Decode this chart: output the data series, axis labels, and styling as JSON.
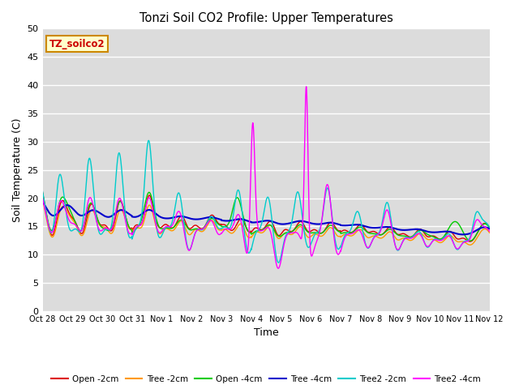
{
  "title": "Tonzi Soil CO2 Profile: Upper Temperatures",
  "xlabel": "Time",
  "ylabel": "Soil Temperature (C)",
  "ylim": [
    0,
    50
  ],
  "yticks": [
    0,
    5,
    10,
    15,
    20,
    25,
    30,
    35,
    40,
    45,
    50
  ],
  "xtick_labels": [
    "Oct 28",
    "Oct 29",
    "Oct 30",
    "Oct 31",
    "Nov 1",
    "Nov 2",
    "Nov 3",
    "Nov 4",
    "Nov 5",
    "Nov 6",
    "Nov 7",
    "Nov 8",
    "Nov 9",
    "Nov 10",
    "Nov 11",
    "Nov 12"
  ],
  "plot_bg_color": "#dcdcdc",
  "grid_color": "#f0f0f0",
  "label_box_text": "TZ_soilco2",
  "label_box_facecolor": "#ffffcc",
  "label_box_edgecolor": "#cc8800",
  "label_box_textcolor": "#cc0000",
  "series": {
    "Open -2cm": {
      "color": "#dd0000",
      "lw": 1.0
    },
    "Tree -2cm": {
      "color": "#ff9900",
      "lw": 1.0
    },
    "Open -4cm": {
      "color": "#00cc00",
      "lw": 1.0
    },
    "Tree -4cm": {
      "color": "#0000cc",
      "lw": 1.5
    },
    "Tree2 -2cm": {
      "color": "#00cccc",
      "lw": 1.0
    },
    "Tree2 -4cm": {
      "color": "#ff00ff",
      "lw": 1.0
    }
  },
  "legend_colors": {
    "Open -2cm": "#dd0000",
    "Tree -2cm": "#ff9900",
    "Open -4cm": "#00cc00",
    "Tree -4cm": "#0000cc",
    "Tree2 -2cm": "#00cccc",
    "Tree2 -4cm": "#ff00ff"
  }
}
